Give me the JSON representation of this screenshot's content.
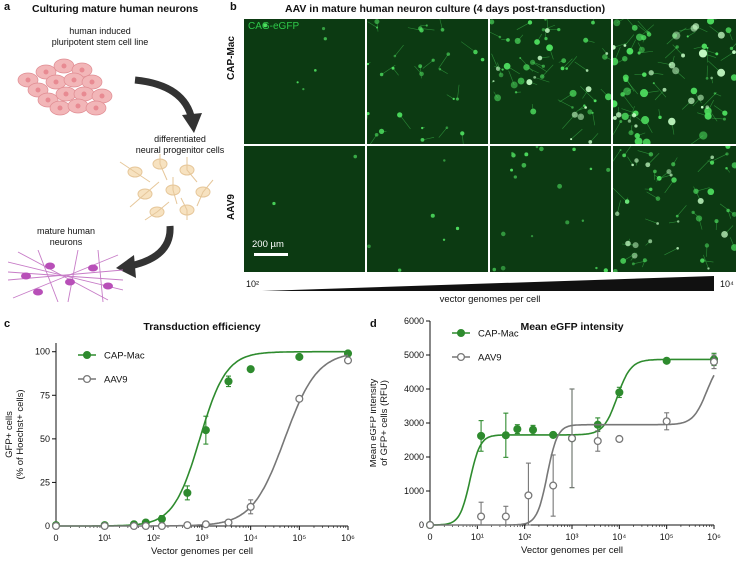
{
  "panel_a": {
    "letter": "a",
    "title": "Culturing mature human neurons",
    "stage1": "human induced\npluripotent stem cell line",
    "stage2": "differentiated\nneural progenitor cells",
    "stage3": "mature human\nneurons"
  },
  "panel_b": {
    "letter": "b",
    "title": "AAV in mature human neuron culture (4 days post-transduction)",
    "channel": "CAG-eGFP",
    "rows": [
      "CAP-Mac",
      "AAV9"
    ],
    "scale_bar": "200 µm",
    "gradient_left": "10²",
    "gradient_right": "10⁴",
    "gradient_label": "vector genomes per cell",
    "brightness": {
      "CAP-Mac": [
        0.05,
        0.35,
        0.7,
        1.0
      ],
      "AAV9": [
        0.0,
        0.05,
        0.25,
        0.65
      ]
    }
  },
  "panel_c": {
    "letter": "c",
    "chart_data": {
      "type": "scatter",
      "title": "Transduction efficiency",
      "xlabel": "Vector genomes per cell",
      "ylabel": "GFP+ cells\n(% of Hoechst+ cells)",
      "xscale": "log",
      "xticks": [
        "0",
        "10¹",
        "10²",
        "10³",
        "10⁴",
        "10⁵",
        "10⁶"
      ],
      "yticks": [
        "0",
        "25",
        "50",
        "75",
        "100"
      ],
      "ylim": [
        0,
        105
      ],
      "legend_placement": "top-left",
      "series": [
        {
          "name": "CAP-Mac",
          "color": "#2e8b2e",
          "marker": "filled-circle",
          "points": [
            {
              "x": 0,
              "y": 0.5,
              "err": 0.5
            },
            {
              "x": 10,
              "y": 0.5,
              "err": 0.5
            },
            {
              "x": 40,
              "y": 1,
              "err": 1
            },
            {
              "x": 70,
              "y": 2,
              "err": 1
            },
            {
              "x": 150,
              "y": 4,
              "err": 2
            },
            {
              "x": 500,
              "y": 19,
              "err": 4
            },
            {
              "x": 1200,
              "y": 55,
              "err": 8
            },
            {
              "x": 3500,
              "y": 83,
              "err": 3
            },
            {
              "x": 10000,
              "y": 90,
              "err": 1
            },
            {
              "x": 100000,
              "y": 97,
              "err": 1
            },
            {
              "x": 1000000,
              "y": 99,
              "err": 1
            }
          ],
          "fit": {
            "ec50": 900,
            "hill": 1.6,
            "top": 100
          }
        },
        {
          "name": "AAV9",
          "color": "#777777",
          "marker": "open-circle",
          "points": [
            {
              "x": 0,
              "y": 0,
              "err": 0.5
            },
            {
              "x": 10,
              "y": 0,
              "err": 0.5
            },
            {
              "x": 40,
              "y": 0,
              "err": 0.5
            },
            {
              "x": 70,
              "y": 0,
              "err": 0.5
            },
            {
              "x": 150,
              "y": 0,
              "err": 0.5
            },
            {
              "x": 500,
              "y": 0.5,
              "err": 0.5
            },
            {
              "x": 1200,
              "y": 1,
              "err": 1
            },
            {
              "x": 3500,
              "y": 2,
              "err": 1
            },
            {
              "x": 10000,
              "y": 11,
              "err": 4
            },
            {
              "x": 100000,
              "y": 73,
              "err": 1
            },
            {
              "x": 1000000,
              "y": 95,
              "err": 1
            }
          ],
          "fit": {
            "ec50": 50000,
            "hill": 1.3,
            "top": 100
          }
        }
      ]
    }
  },
  "panel_d": {
    "letter": "d",
    "chart_data": {
      "type": "scatter",
      "title": "Mean eGFP intensity",
      "xlabel": "Vector genomes per cell",
      "ylabel": "Mean eGFP intensity\nof GFP+ cells (RFU)",
      "xscale": "log",
      "xticks": [
        "0",
        "10¹",
        "10²",
        "10³",
        "10⁴",
        "10⁵",
        "10⁶"
      ],
      "yticks": [
        "0",
        "1000",
        "2000",
        "3000",
        "4000",
        "5000",
        "6000"
      ],
      "ylim": [
        0,
        6000
      ],
      "legend_placement": "top-left",
      "series": [
        {
          "name": "CAP-Mac",
          "color": "#2e8b2e",
          "marker": "filled-circle",
          "points": [
            {
              "x": 0,
              "y": 0,
              "err": 0
            },
            {
              "x": 12,
              "y": 2620,
              "err": 450
            },
            {
              "x": 40,
              "y": 2640,
              "err": 650
            },
            {
              "x": 70,
              "y": 2820,
              "err": 130
            },
            {
              "x": 150,
              "y": 2800,
              "err": 130
            },
            {
              "x": 400,
              "y": 2650,
              "err": 40
            },
            {
              "x": 1000,
              "y": 2550,
              "err": 1450
            },
            {
              "x": 3500,
              "y": 2950,
              "err": 200
            },
            {
              "x": 10000,
              "y": 3900,
              "err": 150
            },
            {
              "x": 100000,
              "y": 4830,
              "err": 30
            },
            {
              "x": 1000000,
              "y": 4870,
              "err": 180
            }
          ],
          "fit": {
            "low_top": 2650,
            "ec1": 7,
            "high_top": 4870,
            "ec2": 9000
          }
        },
        {
          "name": "AAV9",
          "color": "#777777",
          "marker": "open-circle",
          "points": [
            {
              "x": 0,
              "y": 0,
              "err": 0
            },
            {
              "x": 12,
              "y": 250,
              "err": 420
            },
            {
              "x": 40,
              "y": 250,
              "err": 300
            },
            {
              "x": 120,
              "y": 870,
              "err": 950
            },
            {
              "x": 400,
              "y": 1160,
              "err": 900
            },
            {
              "x": 1000,
              "y": 2550,
              "err": 1450
            },
            {
              "x": 3500,
              "y": 2470,
              "err": 300
            },
            {
              "x": 10000,
              "y": 2530,
              "err": 60
            },
            {
              "x": 100000,
              "y": 3050,
              "err": 250
            },
            {
              "x": 1000000,
              "y": 4800,
              "err": 200
            }
          ],
          "fit": {
            "low_top": 2950,
            "ec1": 300,
            "high_top": 4900,
            "ec2": 700000
          }
        }
      ]
    }
  }
}
